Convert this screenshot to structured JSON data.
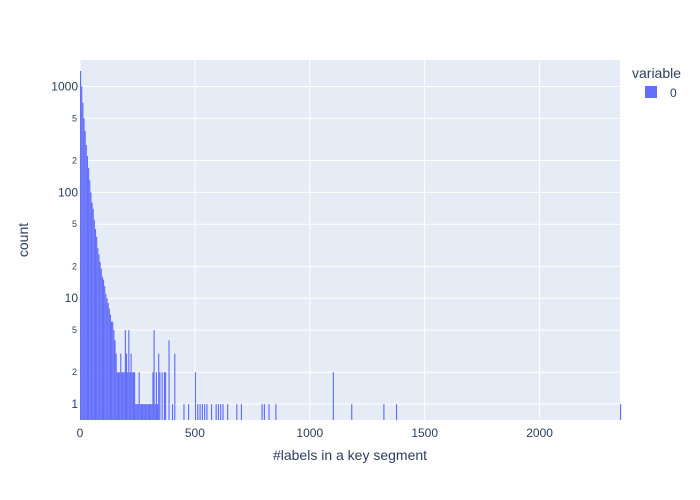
{
  "chart_data": {
    "type": "bar",
    "xlabel": "#labels in a key segment",
    "ylabel": "count",
    "xlim": [
      0,
      2350
    ],
    "ylog": true,
    "ylim_log10": [
      -0.15,
      3.25
    ],
    "x_ticks": [
      0,
      500,
      1000,
      1500,
      2000
    ],
    "x_tick_labels": [
      "0",
      "500",
      "1000",
      "1500",
      "2000"
    ],
    "y_major_ticks": [
      1,
      10,
      100,
      1000
    ],
    "y_major_tick_labels": [
      "1",
      "10",
      "100",
      "1000"
    ],
    "y_minor_ticks": [
      2,
      5,
      20,
      50,
      200,
      500
    ],
    "y_minor_tick_labels": [
      "2",
      "5",
      "2",
      "5",
      "2",
      "5"
    ],
    "legend": {
      "title": "variable",
      "placement": "top-right",
      "entries": [
        {
          "name": "0",
          "color": "#636efa"
        }
      ]
    },
    "bar_color": "#636efa",
    "plot_bg": "#e5ecf6",
    "grid": true,
    "bin_width": 5,
    "series": [
      {
        "name": "0",
        "x": [
          0,
          5,
          10,
          15,
          20,
          25,
          30,
          35,
          40,
          45,
          50,
          55,
          60,
          65,
          70,
          75,
          80,
          85,
          90,
          95,
          100,
          105,
          110,
          115,
          120,
          125,
          130,
          135,
          140,
          145,
          150,
          155,
          160,
          165,
          170,
          175,
          180,
          185,
          190,
          195,
          200,
          205,
          210,
          215,
          220,
          225,
          230,
          235,
          240,
          245,
          250,
          255,
          260,
          265,
          270,
          275,
          280,
          285,
          290,
          295,
          300,
          305,
          310,
          315,
          320,
          325,
          330,
          335,
          340,
          345,
          355,
          365,
          370,
          385,
          400,
          410,
          450,
          470,
          500,
          510,
          520,
          530,
          540,
          550,
          570,
          590,
          600,
          610,
          620,
          640,
          680,
          700,
          790,
          800,
          820,
          850,
          1100,
          1180,
          1320,
          1375,
          2350
        ],
        "values": [
          1400,
          1000,
          700,
          500,
          380,
          280,
          220,
          170,
          130,
          100,
          80,
          70,
          55,
          45,
          38,
          30,
          26,
          22,
          19,
          16,
          15,
          13,
          11,
          10,
          9,
          8,
          7,
          6,
          6,
          5,
          4,
          3,
          2,
          2,
          2,
          3,
          2,
          2,
          2,
          5,
          3,
          2,
          5,
          2,
          3,
          2,
          2,
          2,
          1,
          1,
          1,
          2,
          1,
          1,
          1,
          1,
          1,
          1,
          1,
          1,
          1,
          1,
          1,
          2,
          5,
          1,
          2,
          1,
          3,
          2,
          2,
          2,
          2,
          4,
          1,
          3,
          1,
          1,
          2,
          1,
          1,
          1,
          1,
          1,
          1,
          1,
          1,
          1,
          1,
          1,
          1,
          1,
          1,
          1,
          1,
          1,
          2,
          1,
          1,
          1,
          1
        ]
      }
    ]
  }
}
